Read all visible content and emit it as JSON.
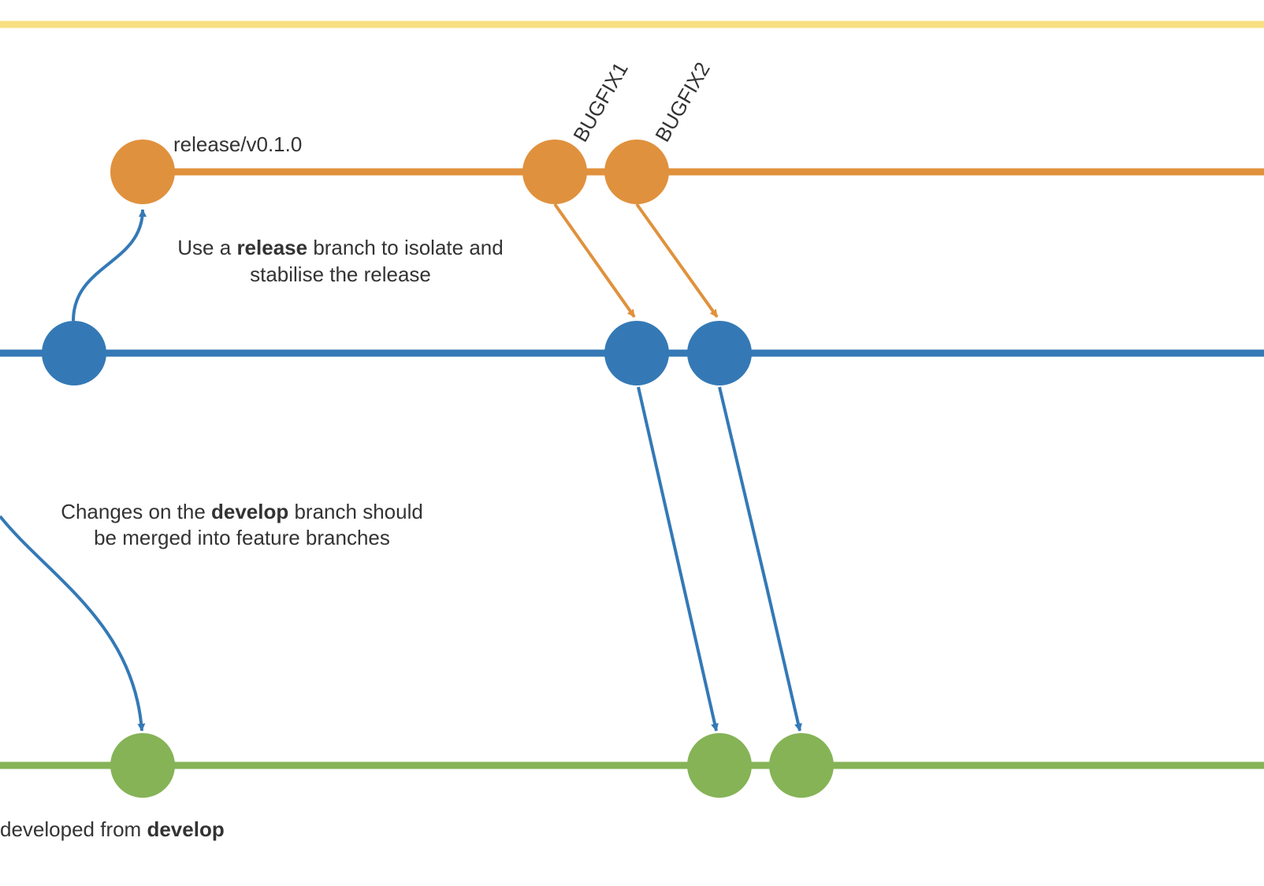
{
  "colors": {
    "master": "#F9DF83",
    "release": "#E0913D",
    "develop": "#3479B6",
    "feature": "#85B356",
    "text": "#333333"
  },
  "labels": {
    "release_branch": "release/v0.1.0",
    "bugfix1": "BUGFIX1",
    "bugfix2": "BUGFIX2",
    "release_note": {
      "line1_pre": "Use a ",
      "line1_bold": "release",
      "line1_post": " branch to isolate and",
      "line2": "stabilise the release"
    },
    "develop_note": {
      "line1_pre": "Changes on the ",
      "line1_bold": "develop",
      "line1_post": " branch should",
      "line2": "be merged into feature branches"
    },
    "feature_note": {
      "pre": "developed from ",
      "bold": "develop"
    }
  }
}
